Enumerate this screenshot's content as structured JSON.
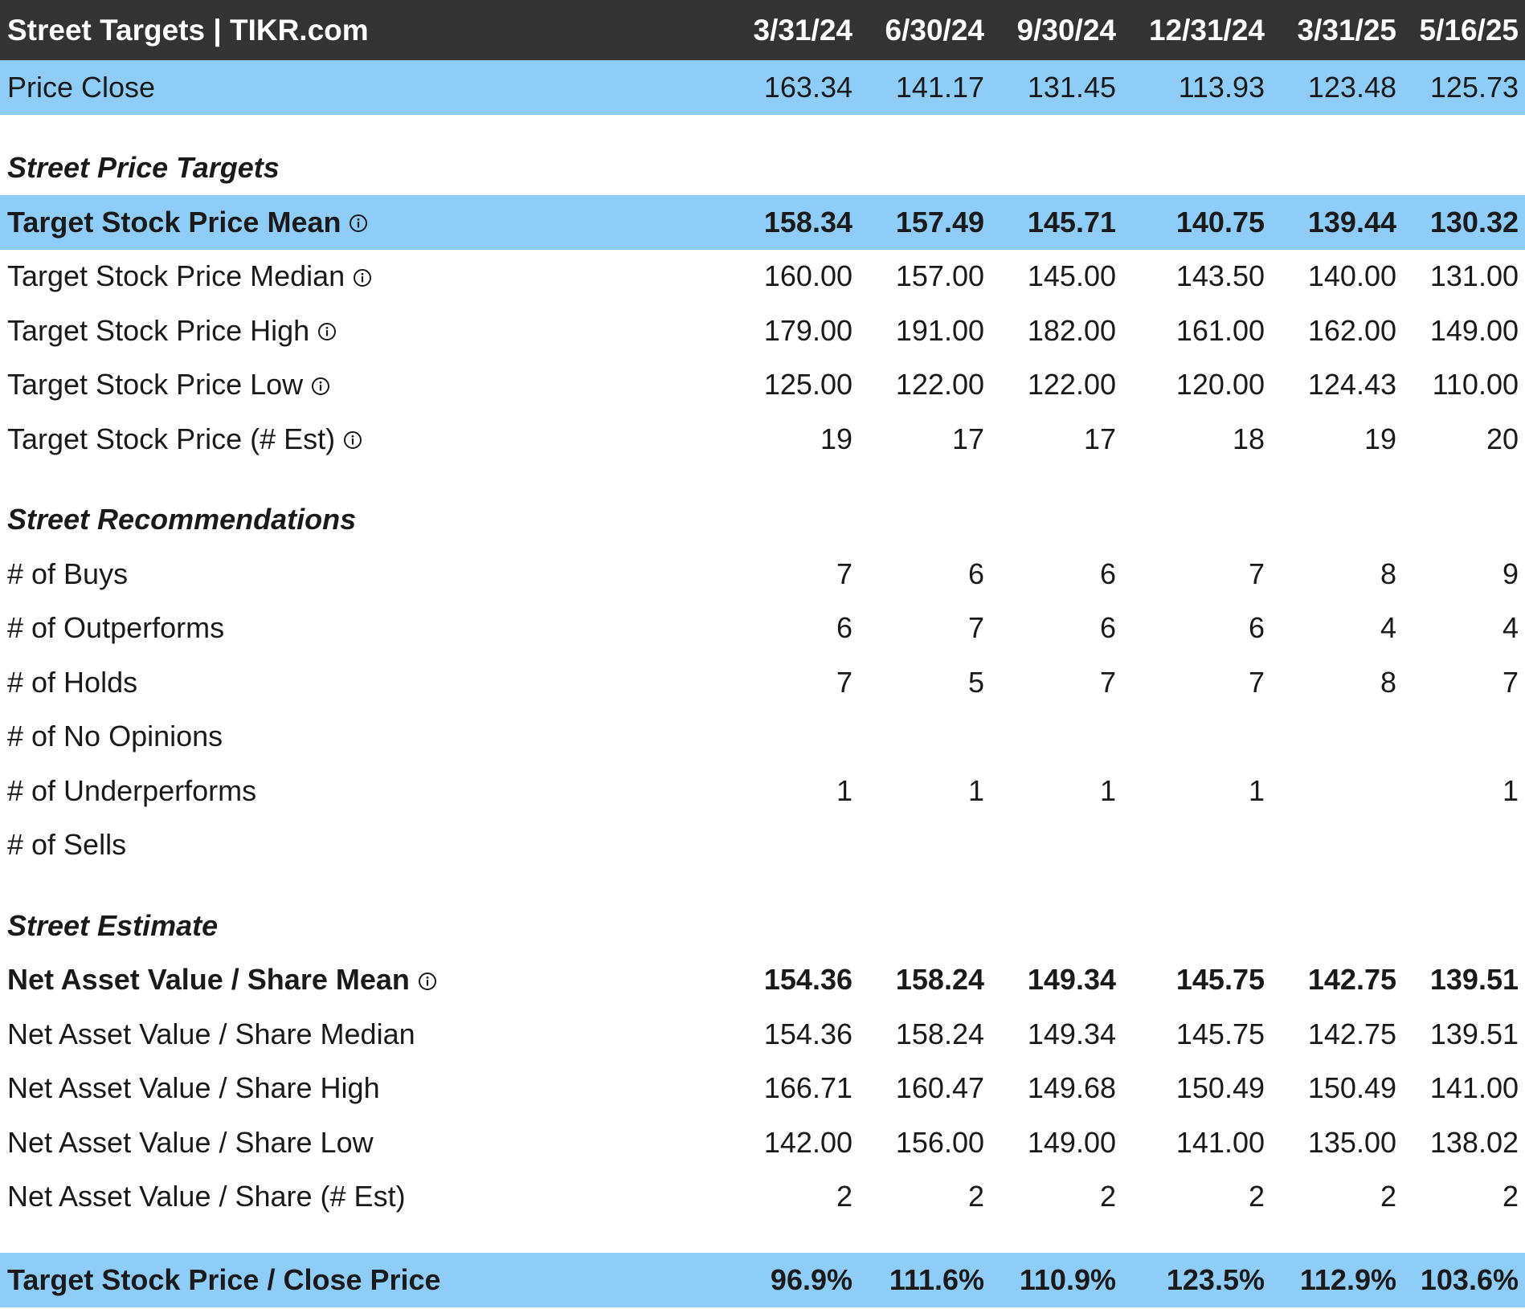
{
  "header": {
    "title": "Street Targets | TIKR.com",
    "periods": [
      "3/31/24",
      "6/30/24",
      "9/30/24",
      "12/31/24",
      "3/31/25",
      "5/16/25"
    ]
  },
  "price_close": {
    "label": "Price Close",
    "values": [
      "163.34",
      "141.17",
      "131.45",
      "113.93",
      "123.48",
      "125.73"
    ]
  },
  "sections": {
    "targets": "Street Price Targets",
    "recommendations": "Street Recommendations",
    "estimate": "Street Estimate"
  },
  "targets": [
    {
      "label": "Target Stock Price Mean",
      "values": [
        "158.34",
        "157.49",
        "145.71",
        "140.75",
        "139.44",
        "130.32"
      ]
    },
    {
      "label": "Target Stock Price Median",
      "values": [
        "160.00",
        "157.00",
        "145.00",
        "143.50",
        "140.00",
        "131.00"
      ]
    },
    {
      "label": "Target Stock Price High",
      "values": [
        "179.00",
        "191.00",
        "182.00",
        "161.00",
        "162.00",
        "149.00"
      ]
    },
    {
      "label": "Target Stock Price Low",
      "values": [
        "125.00",
        "122.00",
        "122.00",
        "120.00",
        "124.43",
        "110.00"
      ]
    },
    {
      "label": "Target Stock Price (# Est)",
      "values": [
        "19",
        "17",
        "17",
        "18",
        "19",
        "20"
      ]
    }
  ],
  "recommendations": [
    {
      "label": "# of Buys",
      "values": [
        "7",
        "6",
        "6",
        "7",
        "8",
        "9"
      ]
    },
    {
      "label": "# of Outperforms",
      "values": [
        "6",
        "7",
        "6",
        "6",
        "4",
        "4"
      ]
    },
    {
      "label": "# of Holds",
      "values": [
        "7",
        "5",
        "7",
        "7",
        "8",
        "7"
      ]
    },
    {
      "label": "# of No Opinions",
      "values": [
        "",
        "",
        "",
        "",
        "",
        ""
      ]
    },
    {
      "label": "# of Underperforms",
      "values": [
        "1",
        "1",
        "1",
        "1",
        "",
        "1"
      ]
    },
    {
      "label": "# of Sells",
      "values": [
        "",
        "",
        "",
        "",
        "",
        ""
      ]
    }
  ],
  "estimate": [
    {
      "label": "Net Asset Value / Share Mean",
      "values": [
        "154.36",
        "158.24",
        "149.34",
        "145.75",
        "142.75",
        "139.51"
      ]
    },
    {
      "label": "Net Asset Value / Share Median",
      "values": [
        "154.36",
        "158.24",
        "149.34",
        "145.75",
        "142.75",
        "139.51"
      ]
    },
    {
      "label": "Net Asset Value / Share High",
      "values": [
        "166.71",
        "160.47",
        "149.68",
        "150.49",
        "150.49",
        "141.00"
      ]
    },
    {
      "label": "Net Asset Value / Share Low",
      "values": [
        "142.00",
        "156.00",
        "149.00",
        "141.00",
        "135.00",
        "138.02"
      ]
    },
    {
      "label": "Net Asset Value / Share (# Est)",
      "values": [
        "2",
        "2",
        "2",
        "2",
        "2",
        "2"
      ]
    }
  ],
  "ratio": {
    "label": "Target Stock Price / Close Price",
    "values": [
      "96.9%",
      "111.6%",
      "110.9%",
      "123.5%",
      "112.9%",
      "103.6%"
    ]
  },
  "icons": {
    "info": "info-circle-icon"
  },
  "colors": {
    "header_bg": "#333333",
    "highlight_bg": "#8dcdf7"
  }
}
